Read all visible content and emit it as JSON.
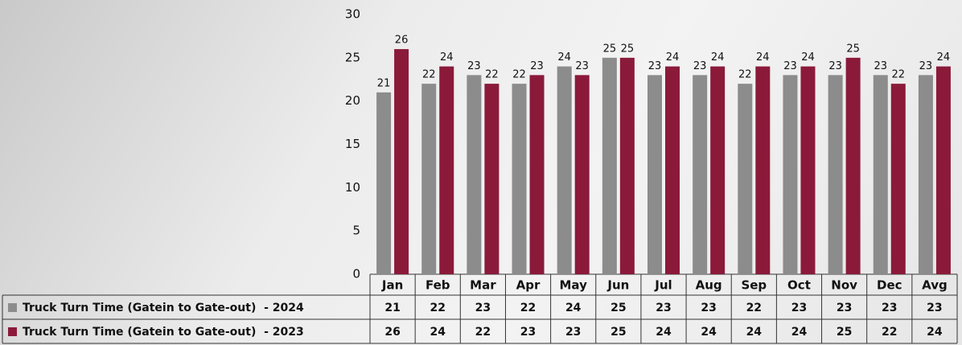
{
  "chart_data": {
    "type": "bar",
    "categories": [
      "Jan",
      "Feb",
      "Mar",
      "Apr",
      "May",
      "Jun",
      "Jul",
      "Aug",
      "Sep",
      "Oct",
      "Nov",
      "Dec",
      "Avg"
    ],
    "series": [
      {
        "name": "Truck Turn Time (Gatein to Gate-out)  - 2024",
        "color": "#8c8c8c",
        "values": [
          21,
          22,
          23,
          22,
          24,
          25,
          23,
          23,
          22,
          23,
          23,
          23,
          23
        ]
      },
      {
        "name": "Truck Turn Time (Gatein to Gate-out)  - 2023",
        "color": "#8b1a3a",
        "values": [
          26,
          24,
          22,
          23,
          23,
          25,
          24,
          24,
          24,
          24,
          25,
          22,
          24
        ]
      }
    ],
    "ylim": [
      0,
      30
    ],
    "yticks": [
      0,
      5,
      10,
      15,
      20,
      25,
      30
    ],
    "grid": false,
    "data_table": true
  }
}
